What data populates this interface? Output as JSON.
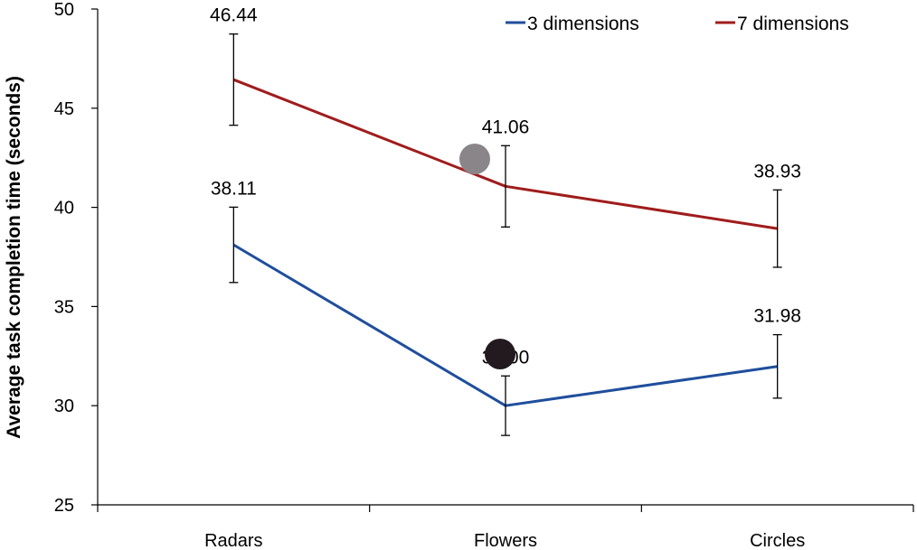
{
  "chart_data": {
    "type": "line",
    "title": "",
    "xlabel": "",
    "ylabel": "Average task completion time (seconds)",
    "categories": [
      "Radars",
      "Flowers",
      "Circles"
    ],
    "ylim": [
      25,
      50
    ],
    "yticks": [
      25,
      30,
      35,
      40,
      45,
      50
    ],
    "grid": false,
    "legend": "top-right",
    "series": [
      {
        "name": "3 dimensions",
        "color": "#1f4e9c",
        "values": [
          38.11,
          30.0,
          31.98
        ],
        "labels": [
          "38.11",
          "30.00",
          "31.98"
        ],
        "error": [
          1.9,
          1.5,
          1.6
        ]
      },
      {
        "name": "7 dimensions",
        "color": "#a01c1c",
        "values": [
          46.44,
          41.06,
          38.93
        ],
        "labels": [
          "46.44",
          "41.06",
          "38.93"
        ],
        "error": [
          2.3,
          2.05,
          1.95
        ]
      }
    ]
  }
}
